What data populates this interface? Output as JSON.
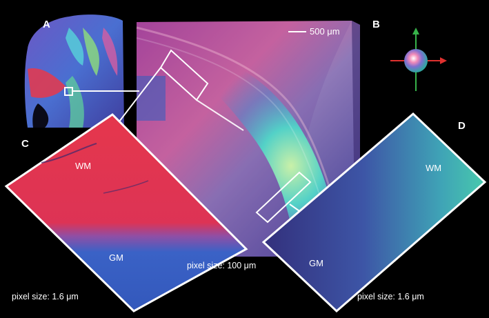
{
  "panels": {
    "a": {
      "letter": "A"
    },
    "b": {
      "letter": "B"
    },
    "c": {
      "letter": "C",
      "wm": "WM",
      "gm": "GM",
      "pixel_size": "pixel size: 1.6 μm"
    },
    "d": {
      "letter": "D",
      "wm": "WM",
      "gm": "GM",
      "pixel_size": "pixel size: 1.6 μm"
    }
  },
  "main": {
    "scale_bar": "500 μm",
    "pixel_size": "pixel size: 100 μm"
  },
  "colors": {
    "background": "#000000",
    "callout": "#ffffff",
    "axis_x": "#e0312f",
    "axis_y": "#37b34a",
    "wm_red": "#e8374a",
    "gm_blue": "#3a63c8",
    "fiber_cyan": "#36d1c4"
  }
}
